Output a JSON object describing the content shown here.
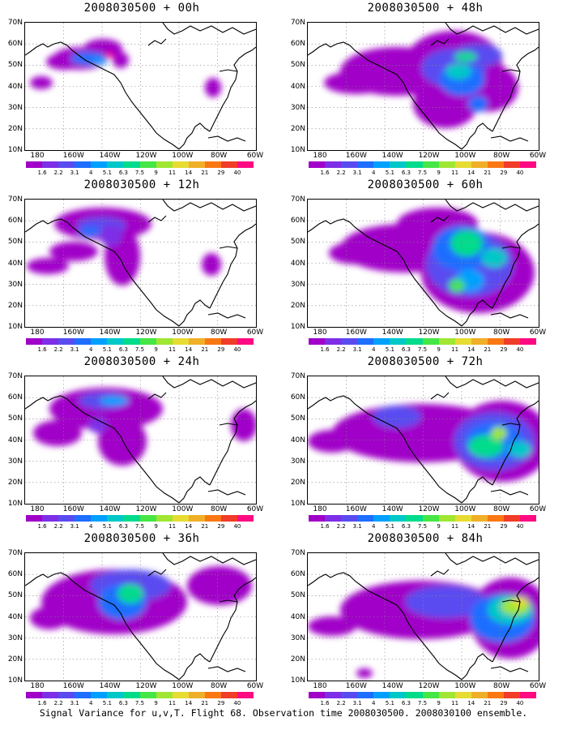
{
  "panels": [
    {
      "title": "2008030500 + 00h"
    },
    {
      "title": "2008030500 + 48h"
    },
    {
      "title": "2008030500 + 12h"
    },
    {
      "title": "2008030500 + 60h"
    },
    {
      "title": "2008030500 + 24h"
    },
    {
      "title": "2008030500 + 72h"
    },
    {
      "title": "2008030500 + 36h"
    },
    {
      "title": "2008030500 + 84h"
    }
  ],
  "lat_labels": [
    "70N",
    "60N",
    "50N",
    "40N",
    "30N",
    "20N",
    "10N"
  ],
  "lon_labels": [
    "180",
    "160W",
    "140W",
    "120W",
    "100W",
    "80W",
    "60W"
  ],
  "colorbar": {
    "labels": [
      "1.6",
      "2.2",
      "3.1",
      "4",
      "5.1",
      "6.3",
      "7.5",
      "9",
      "11",
      "14",
      "21",
      "29",
      "40"
    ],
    "colors": [
      "#a000c8",
      "#7d2ee6",
      "#5a4bf0",
      "#1e6eff",
      "#00a0ff",
      "#00c8c8",
      "#00dc8c",
      "#46e646",
      "#a0e632",
      "#e6dc32",
      "#f0af28",
      "#fa7814",
      "#f03c28",
      "#ff0a82"
    ]
  },
  "caption": "Signal Variance for u,v,T. Flight 68. Observation time 2008030500. 2008030100 ensemble."
}
